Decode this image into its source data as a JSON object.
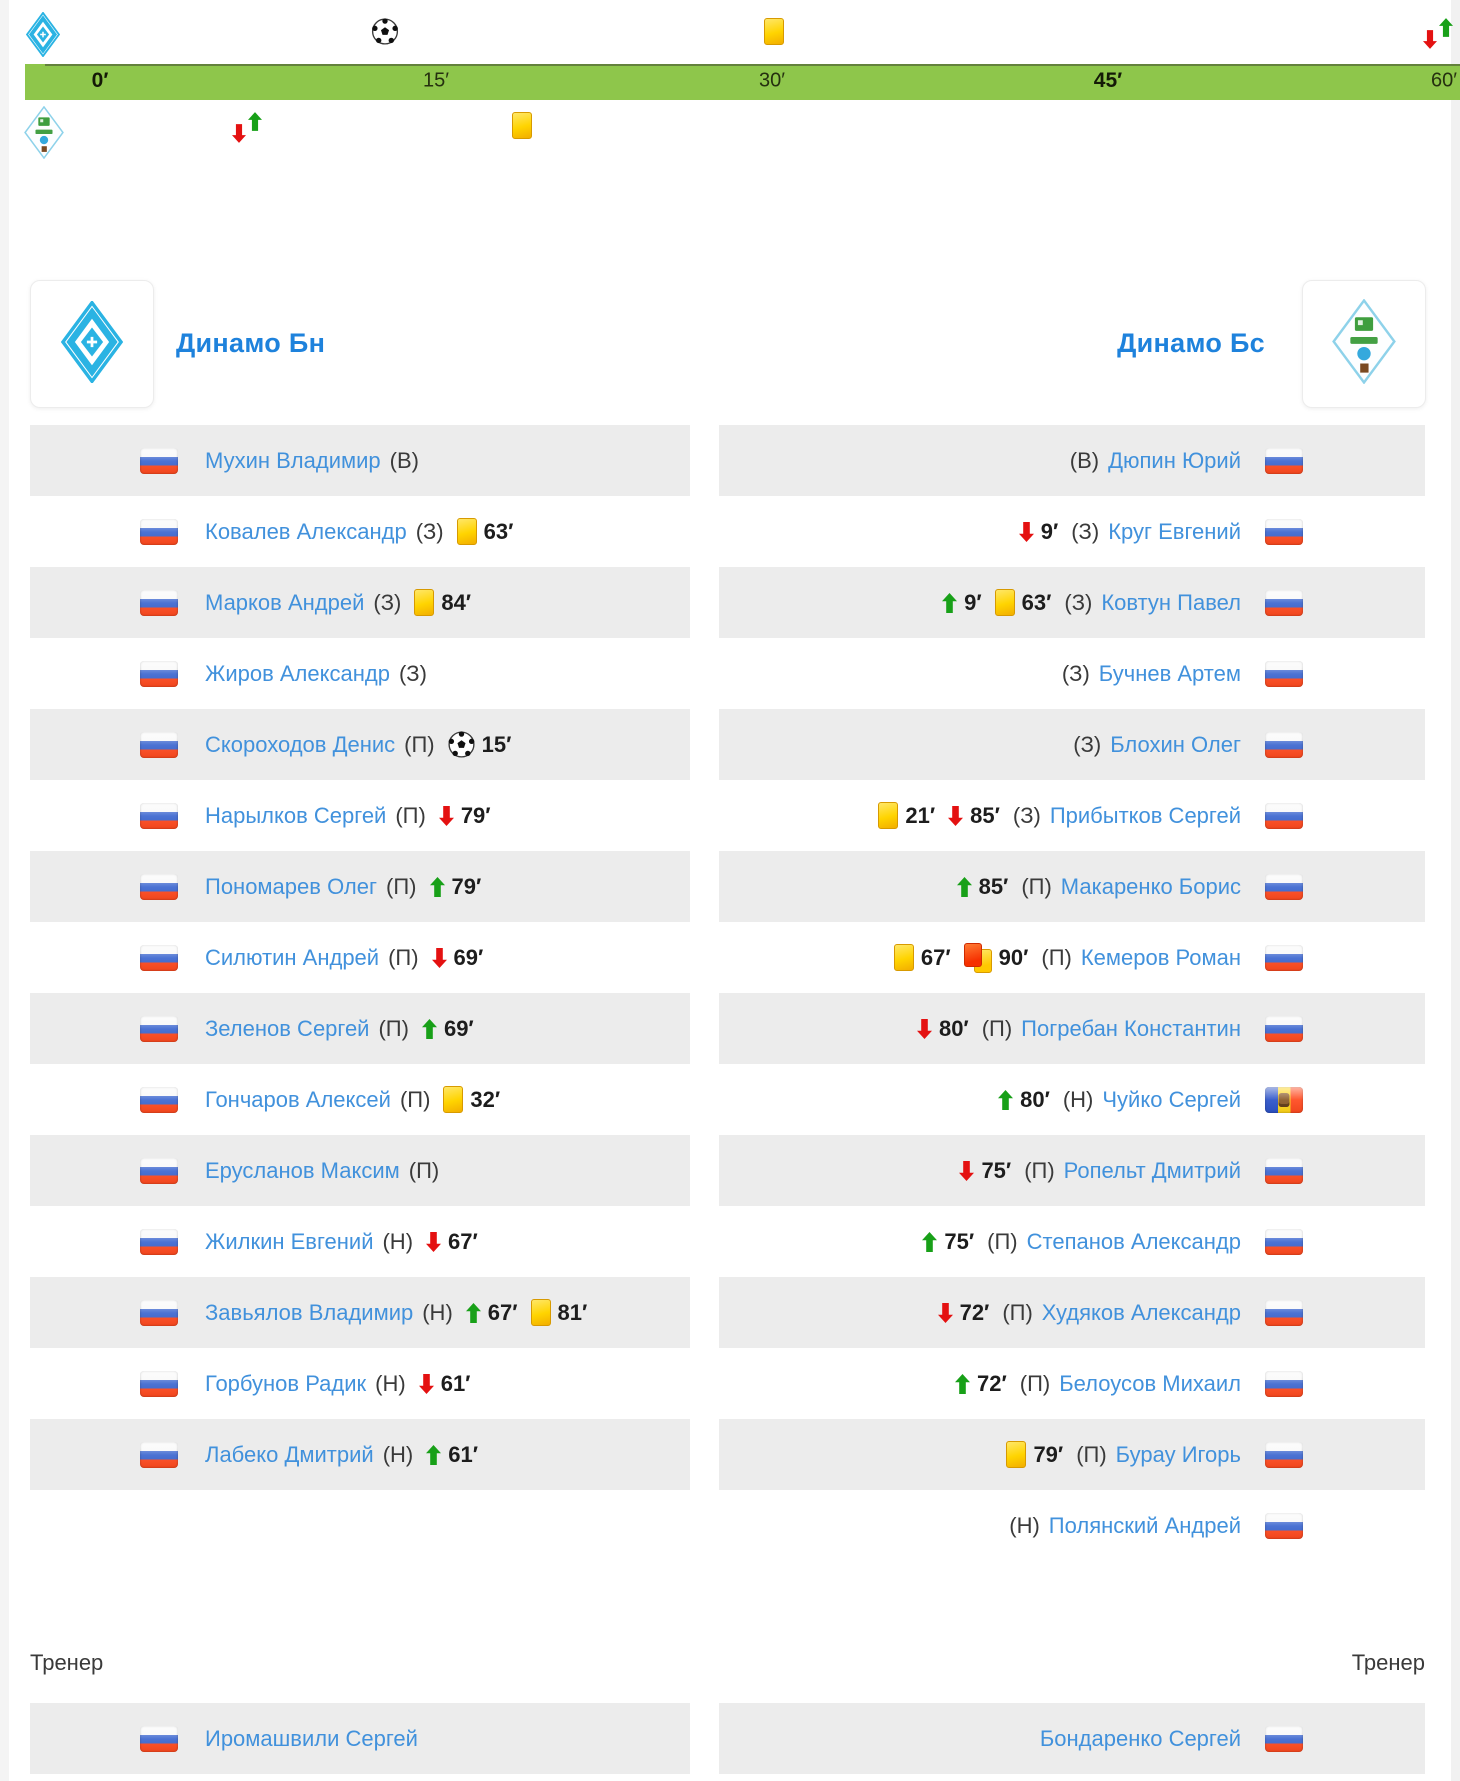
{
  "teams": {
    "home": {
      "name": "Динамо Бн"
    },
    "away": {
      "name": "Динамо Бс"
    }
  },
  "timeline": {
    "bar_labels": [
      {
        "text": "0′",
        "minute": 0,
        "bold": true
      },
      {
        "text": "15′",
        "minute": 15,
        "bold": false
      },
      {
        "text": "30′",
        "minute": 30,
        "bold": false
      },
      {
        "text": "45′",
        "minute": 45,
        "bold": true
      },
      {
        "text": "60′",
        "minute": 60,
        "bold": false
      }
    ],
    "home_events": [
      {
        "type": "goal",
        "minute": 15
      },
      {
        "type": "yellow",
        "minute": 32
      },
      {
        "type": "sub",
        "minute": 61
      }
    ],
    "away_events": [
      {
        "type": "sub",
        "minute": 9
      },
      {
        "type": "yellow",
        "minute": 21
      }
    ]
  },
  "lineups": {
    "home": [
      {
        "name": "Мухин Владимир",
        "pos": "(В)",
        "flag": "ru",
        "events": []
      },
      {
        "name": "Ковалев Александр",
        "pos": "(З)",
        "flag": "ru",
        "events": [
          {
            "type": "yellow",
            "minute": "63′"
          }
        ]
      },
      {
        "name": "Марков Андрей",
        "pos": "(З)",
        "flag": "ru",
        "events": [
          {
            "type": "yellow",
            "minute": "84′"
          }
        ]
      },
      {
        "name": "Жиров Александр",
        "pos": "(З)",
        "flag": "ru",
        "events": []
      },
      {
        "name": "Скороходов Денис",
        "pos": "(П)",
        "flag": "ru",
        "events": [
          {
            "type": "goal",
            "minute": "15′"
          }
        ]
      },
      {
        "name": "Нарылков Сергей",
        "pos": "(П)",
        "flag": "ru",
        "events": [
          {
            "type": "out",
            "minute": "79′"
          }
        ]
      },
      {
        "name": "Пономарев Олег",
        "pos": "(П)",
        "flag": "ru",
        "events": [
          {
            "type": "in",
            "minute": "79′"
          }
        ]
      },
      {
        "name": "Силютин Андрей",
        "pos": "(П)",
        "flag": "ru",
        "events": [
          {
            "type": "out",
            "minute": "69′"
          }
        ]
      },
      {
        "name": "Зеленов Сергей",
        "pos": "(П)",
        "flag": "ru",
        "events": [
          {
            "type": "in",
            "minute": "69′"
          }
        ]
      },
      {
        "name": "Гончаров Алексей",
        "pos": "(П)",
        "flag": "ru",
        "events": [
          {
            "type": "yellow",
            "minute": "32′"
          }
        ]
      },
      {
        "name": "Ерусланов Максим",
        "pos": "(П)",
        "flag": "ru",
        "events": []
      },
      {
        "name": "Жилкин Евгений",
        "pos": "(Н)",
        "flag": "ru",
        "events": [
          {
            "type": "out",
            "minute": "67′"
          }
        ]
      },
      {
        "name": "Завьялов Владимир",
        "pos": "(Н)",
        "flag": "ru",
        "events": [
          {
            "type": "in",
            "minute": "67′"
          },
          {
            "type": "yellow",
            "minute": "81′"
          }
        ]
      },
      {
        "name": "Горбунов Радик",
        "pos": "(Н)",
        "flag": "ru",
        "events": [
          {
            "type": "out",
            "minute": "61′"
          }
        ]
      },
      {
        "name": "Лабеко Дмитрий",
        "pos": "(Н)",
        "flag": "ru",
        "events": [
          {
            "type": "in",
            "minute": "61′"
          }
        ]
      }
    ],
    "away": [
      {
        "name": "Дюпин Юрий",
        "pos": "(В)",
        "flag": "ru",
        "events": []
      },
      {
        "name": "Круг Евгений",
        "pos": "(З)",
        "flag": "ru",
        "events": [
          {
            "type": "out",
            "minute": "9′"
          }
        ]
      },
      {
        "name": "Ковтун Павел",
        "pos": "(З)",
        "flag": "ru",
        "events": [
          {
            "type": "in",
            "minute": "9′"
          },
          {
            "type": "yellow",
            "minute": "63′"
          }
        ]
      },
      {
        "name": "Бучнев Артем",
        "pos": "(З)",
        "flag": "ru",
        "events": []
      },
      {
        "name": "Блохин Олег",
        "pos": "(З)",
        "flag": "ru",
        "events": []
      },
      {
        "name": "Прибытков Сергей",
        "pos": "(З)",
        "flag": "ru",
        "events": [
          {
            "type": "yellow",
            "minute": "21′"
          },
          {
            "type": "out",
            "minute": "85′"
          }
        ]
      },
      {
        "name": "Макаренко Борис",
        "pos": "(П)",
        "flag": "ru",
        "events": [
          {
            "type": "in",
            "minute": "85′"
          }
        ]
      },
      {
        "name": "Кемеров Роман",
        "pos": "(П)",
        "flag": "ru",
        "events": [
          {
            "type": "yellow",
            "minute": "67′"
          },
          {
            "type": "second_yellow",
            "minute": "90′"
          }
        ]
      },
      {
        "name": "Погребан Константин",
        "pos": "(П)",
        "flag": "ru",
        "events": [
          {
            "type": "out",
            "minute": "80′"
          }
        ]
      },
      {
        "name": "Чуйко Сергей",
        "pos": "(Н)",
        "flag": "md",
        "events": [
          {
            "type": "in",
            "minute": "80′"
          }
        ]
      },
      {
        "name": "Ропельт Дмитрий",
        "pos": "(П)",
        "flag": "ru",
        "events": [
          {
            "type": "out",
            "minute": "75′"
          }
        ]
      },
      {
        "name": "Степанов Александр",
        "pos": "(П)",
        "flag": "ru",
        "events": [
          {
            "type": "in",
            "minute": "75′"
          }
        ]
      },
      {
        "name": "Худяков Александр",
        "pos": "(П)",
        "flag": "ru",
        "events": [
          {
            "type": "out",
            "minute": "72′"
          }
        ]
      },
      {
        "name": "Белоусов Михаил",
        "pos": "(П)",
        "flag": "ru",
        "events": [
          {
            "type": "in",
            "minute": "72′"
          }
        ]
      },
      {
        "name": "Бурау Игорь",
        "pos": "(П)",
        "flag": "ru",
        "events": [
          {
            "type": "yellow",
            "minute": "79′"
          }
        ]
      },
      {
        "name": "Полянский Андрей",
        "pos": "(Н)",
        "flag": "ru",
        "events": []
      }
    ]
  },
  "coaches": {
    "label": "Тренер",
    "home": {
      "name": "Иромашвили Сергей",
      "flag": "ru"
    },
    "away": {
      "name": "Бондаренко Сергей",
      "flag": "ru"
    }
  },
  "colors": {
    "timeline_green": "#8ec64b",
    "row_gray": "#ececec",
    "link_blue": "#4191dc",
    "title_blue": "#1e82dc",
    "yellow_card": "#ffd400",
    "red_card": "#f63000",
    "sub_in_green": "#18a018",
    "sub_out_red": "#e41111"
  }
}
